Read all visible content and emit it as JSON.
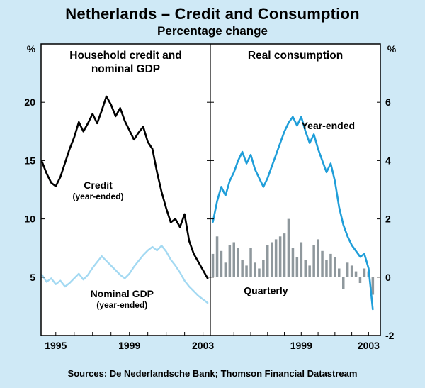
{
  "title": "Netherlands – Credit and Consumption",
  "subtitle": "Percentage change",
  "source_note": "Sources: De Nederlandsche Bank; Thomson Financial Datastream",
  "colors": {
    "background": "#cfe9f6",
    "plot_bg": "#ffffff",
    "frame": "#000000",
    "text": "#000000",
    "credit_line": "#000000",
    "nominal_gdp_line": "#a3d9f2",
    "year_ended_line": "#1f9ed9",
    "quarterly_bars": "#8f989d"
  },
  "chart_data": [
    {
      "type": "line",
      "panel": "left",
      "title_lines": [
        "Household credit and",
        "nominal GDP"
      ],
      "ylabel": "%",
      "ylim": [
        0,
        25
      ],
      "yticks": [
        5,
        10,
        15,
        20
      ],
      "xlim": [
        1994.2,
        2003.4
      ],
      "xtick_labels": [
        1995,
        1999,
        2003
      ],
      "grid": false,
      "series": [
        {
          "id": "credit",
          "name": "Credit (year-ended)",
          "type": "line",
          "color_key": "credit_line",
          "width": 2.6,
          "x_start": 1994.25,
          "x_step": 0.25,
          "values": [
            14.9,
            13.9,
            13.1,
            12.8,
            13.6,
            14.8,
            16.0,
            17.0,
            18.3,
            17.5,
            18.2,
            19.0,
            18.2,
            19.3,
            20.5,
            19.8,
            18.8,
            19.5,
            18.4,
            17.6,
            16.8,
            17.4,
            17.9,
            16.6,
            16.0,
            14.0,
            12.3,
            10.9,
            9.7,
            10.0,
            9.3,
            10.4,
            8.1,
            7.0,
            6.3,
            5.6,
            4.9
          ]
        },
        {
          "id": "nominal-gdp",
          "name": "Nominal GDP (year-ended)",
          "type": "line",
          "color_key": "nominal_gdp_line",
          "width": 2.4,
          "x_start": 1994.25,
          "x_step": 0.25,
          "values": [
            5.2,
            4.6,
            4.9,
            4.4,
            4.7,
            4.2,
            4.5,
            4.9,
            5.3,
            4.8,
            5.2,
            5.8,
            6.3,
            6.8,
            6.4,
            6.0,
            5.6,
            5.2,
            4.9,
            5.3,
            5.9,
            6.4,
            6.9,
            7.3,
            7.6,
            7.3,
            7.7,
            7.2,
            6.5,
            6.0,
            5.4,
            4.7,
            4.2,
            3.8,
            3.4,
            3.1,
            2.8
          ]
        }
      ],
      "annotations": [
        {
          "text": "Credit",
          "sub": "(year-ended)",
          "x": 1997.3,
          "y": 12.9
        },
        {
          "text": "Nominal GDP",
          "sub": "(year-ended)",
          "x": 1998.6,
          "y": 3.6
        }
      ]
    },
    {
      "type": "line+bar",
      "panel": "right",
      "title_lines": [
        "Real consumption"
      ],
      "ylabel": "%",
      "ylim": [
        -2,
        8
      ],
      "yticks": [
        -2,
        0,
        2,
        4,
        6
      ],
      "xlim": [
        1993.6,
        2003.7
      ],
      "xtick_labels": [
        1999,
        2003
      ],
      "grid": false,
      "series": [
        {
          "id": "quarterly",
          "name": "Quarterly",
          "type": "bar",
          "color_key": "quarterly_bars",
          "x_start": 1993.75,
          "x_step": 0.25,
          "values": [
            0.8,
            1.4,
            0.9,
            0.5,
            1.1,
            1.2,
            1.0,
            0.6,
            0.4,
            1.0,
            0.5,
            0.3,
            0.6,
            1.1,
            1.2,
            1.3,
            1.4,
            1.5,
            2.0,
            1.0,
            0.7,
            1.2,
            0.6,
            0.4,
            1.1,
            1.3,
            0.9,
            0.6,
            0.8,
            0.7,
            0.3,
            -0.4,
            0.5,
            0.4,
            0.2,
            -0.2,
            0.3,
            0.2,
            -0.6
          ]
        },
        {
          "id": "year-ended",
          "name": "Year-ended",
          "type": "line",
          "color_key": "year_ended_line",
          "width": 2.6,
          "x_start": 1993.75,
          "x_step": 0.25,
          "values": [
            1.9,
            2.6,
            3.1,
            2.8,
            3.3,
            3.6,
            4.0,
            4.3,
            3.9,
            4.2,
            3.7,
            3.4,
            3.1,
            3.4,
            3.8,
            4.2,
            4.6,
            5.0,
            5.3,
            5.5,
            5.2,
            5.5,
            5.0,
            4.6,
            4.9,
            4.4,
            4.0,
            3.6,
            3.9,
            3.3,
            2.4,
            1.8,
            1.4,
            1.1,
            0.9,
            0.7,
            0.8,
            0.3,
            -1.1
          ]
        }
      ],
      "annotations": [
        {
          "text": "Year-ended",
          "x": 2000.6,
          "y": 5.2
        },
        {
          "text": "Quarterly",
          "x": 1996.9,
          "y": -0.45
        }
      ]
    }
  ]
}
